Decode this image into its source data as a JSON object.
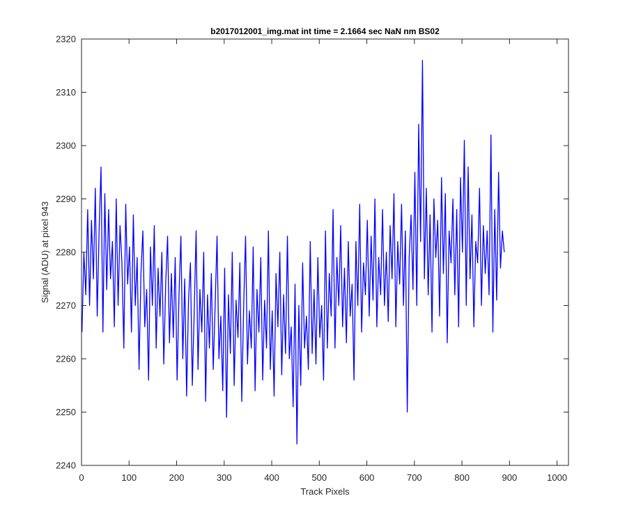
{
  "chart_data": {
    "type": "line",
    "title": "b2017012001_img.mat int time = 2.1664 sec  NaN nm BS02",
    "xlabel": "Track Pixels",
    "ylabel": "Signal (ADU) at pixel 943",
    "xlim": [
      0,
      1024
    ],
    "ylim": [
      2240,
      2320
    ],
    "x_ticks": [
      0,
      100,
      200,
      300,
      400,
      500,
      600,
      700,
      800,
      900,
      1000
    ],
    "y_ticks": [
      2240,
      2250,
      2260,
      2270,
      2280,
      2290,
      2300,
      2310,
      2320
    ],
    "grid": false,
    "line_color": "#0000ff",
    "series": [
      {
        "x_start": 1,
        "x_step": 4,
        "values": [
          2265,
          2280,
          2272,
          2288,
          2270,
          2286,
          2275,
          2292,
          2268,
          2284,
          2296,
          2265,
          2291,
          2273,
          2288,
          2275,
          2282,
          2266,
          2290,
          2270,
          2285,
          2278,
          2262,
          2289,
          2274,
          2281,
          2265,
          2287,
          2270,
          2279,
          2258,
          2276,
          2284,
          2266,
          2273,
          2256,
          2281,
          2270,
          2285,
          2262,
          2277,
          2268,
          2280,
          2259,
          2274,
          2283,
          2263,
          2276,
          2264,
          2279,
          2256,
          2272,
          2283,
          2260,
          2275,
          2253,
          2271,
          2278,
          2255,
          2269,
          2284,
          2258,
          2273,
          2265,
          2280,
          2252,
          2272,
          2262,
          2276,
          2258,
          2270,
          2283,
          2260,
          2268,
          2254,
          2277,
          2249,
          2272,
          2261,
          2280,
          2255,
          2271,
          2264,
          2278,
          2252,
          2270,
          2283,
          2259,
          2269,
          2262,
          2281,
          2254,
          2273,
          2265,
          2279,
          2256,
          2271,
          2262,
          2284,
          2258,
          2269,
          2253,
          2276,
          2266,
          2280,
          2257,
          2272,
          2261,
          2283,
          2260,
          2266,
          2251,
          2274,
          2244,
          2270,
          2255,
          2278,
          2262,
          2268,
          2258,
          2282,
          2261,
          2273,
          2259,
          2279,
          2264,
          2270,
          2256,
          2284,
          2262,
          2276,
          2268,
          2288,
          2262,
          2279,
          2270,
          2285,
          2266,
          2277,
          2263,
          2282,
          2268,
          2274,
          2256,
          2282,
          2270,
          2289,
          2265,
          2278,
          2272,
          2286,
          2268,
          2283,
          2271,
          2290,
          2266,
          2279,
          2272,
          2288,
          2270,
          2280,
          2267,
          2285,
          2275,
          2291,
          2266,
          2282,
          2274,
          2289,
          2270,
          2284,
          2250,
          2279,
          2287,
          2273,
          2295,
          2270,
          2304,
          2282,
          2316,
          2275,
          2292,
          2272,
          2287,
          2265,
          2290,
          2279,
          2286,
          2268,
          2294,
          2276,
          2291,
          2263,
          2284,
          2278,
          2290,
          2272,
          2288,
          2266,
          2294,
          2280,
          2301,
          2270,
          2296,
          2275,
          2287,
          2266,
          2282,
          2278,
          2292,
          2270,
          2285,
          2276,
          2284,
          2272,
          2302,
          2265,
          2288,
          2271,
          2295,
          2277,
          2284,
          2280
        ]
      }
    ]
  }
}
